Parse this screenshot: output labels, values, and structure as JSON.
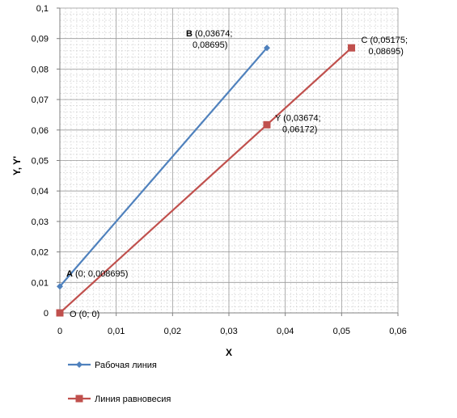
{
  "chart_data": {
    "type": "line",
    "xlabel": "X",
    "ylabel": "Y, Y'",
    "xlim": [
      0,
      0.06
    ],
    "ylim": [
      0,
      0.1
    ],
    "x_ticks": [
      "0",
      "0,01",
      "0,02",
      "0,03",
      "0,04",
      "0,05",
      "0,06"
    ],
    "y_ticks": [
      "0",
      "0,01",
      "0,02",
      "0,03",
      "0,04",
      "0,05",
      "0,06",
      "0,07",
      "0,08",
      "0,09",
      "0,1"
    ],
    "grid": true,
    "legend_position": "bottom-left",
    "series": [
      {
        "name": "Рабочая линия",
        "color": "#4f81bd",
        "marker": "diamond",
        "points": [
          {
            "x": 0,
            "y": 0.008695,
            "label_bold": "A",
            "label_lines": [
              " (0; 0,008695)"
            ]
          },
          {
            "x": 0.03674,
            "y": 0.08695,
            "label_bold": "B",
            "label_lines": [
              " (0,03674;",
              "0,08695)"
            ]
          }
        ]
      },
      {
        "name": "Линия равновесия",
        "color": "#c0504d",
        "marker": "square",
        "points": [
          {
            "x": 0,
            "y": 0,
            "label_bold": "",
            "label_lines": [
              "O (0; 0)"
            ]
          },
          {
            "x": 0.03674,
            "y": 0.06172,
            "label_bold": "",
            "label_lines": [
              "Y (0,03674;",
              "0,06172)"
            ]
          },
          {
            "x": 0.05175,
            "y": 0.08695,
            "label_bold": "",
            "label_lines": [
              "C (0,05175;",
              "0,08695)"
            ]
          }
        ]
      }
    ]
  }
}
